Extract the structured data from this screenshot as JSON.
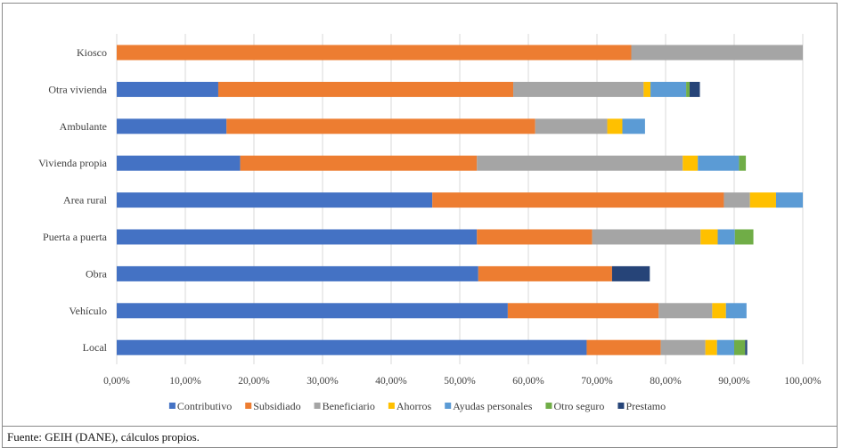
{
  "chart_data": {
    "type": "bar",
    "orientation": "horizontal",
    "stacked": true,
    "categories": [
      "Kiosco",
      "Otra vivienda",
      "Ambulante",
      "Vivienda propia",
      "Area rural",
      "Puerta a puerta",
      "Obra",
      "Vehículo",
      "Local"
    ],
    "series": [
      {
        "name": "Contributivo",
        "color": "#4472C4",
        "values": [
          0,
          14.8,
          16.0,
          18.0,
          46.0,
          52.5,
          52.7,
          57.0,
          68.5
        ]
      },
      {
        "name": "Subsidiado",
        "color": "#ED7D31",
        "values": [
          75.0,
          43.0,
          45.0,
          34.5,
          42.5,
          16.8,
          19.5,
          22.0,
          10.8
        ]
      },
      {
        "name": "Beneficiario",
        "color": "#A5A5A5",
        "values": [
          25.0,
          19.0,
          10.5,
          30.0,
          3.8,
          15.8,
          0,
          7.8,
          6.5
        ]
      },
      {
        "name": "Ahorros",
        "color": "#FFC000",
        "values": [
          0,
          1.0,
          2.2,
          2.2,
          3.8,
          2.5,
          0,
          2.0,
          1.7
        ]
      },
      {
        "name": "Ayudas personales",
        "color": "#5B9BD5",
        "values": [
          0,
          5.2,
          3.3,
          6.0,
          3.9,
          2.5,
          0,
          3.0,
          2.5
        ]
      },
      {
        "name": "Otro seguro",
        "color": "#70AD47",
        "values": [
          0,
          0.5,
          0,
          1.0,
          0,
          2.7,
          0,
          0,
          1.6
        ]
      },
      {
        "name": "Prestamo",
        "color": "#264478",
        "values": [
          0,
          1.5,
          0,
          0,
          0,
          0,
          5.5,
          0,
          0.3
        ]
      }
    ],
    "xlim": [
      0,
      100
    ],
    "x_ticks": [
      "0,00%",
      "10,00%",
      "20,00%",
      "30,00%",
      "40,00%",
      "50,00%",
      "60,00%",
      "70,00%",
      "80,00%",
      "90,00%",
      "100,00%"
    ],
    "grid": true,
    "legend_position": "bottom"
  },
  "footer": {
    "source": "Fuente: GEIH (DANE), cálculos propios."
  }
}
